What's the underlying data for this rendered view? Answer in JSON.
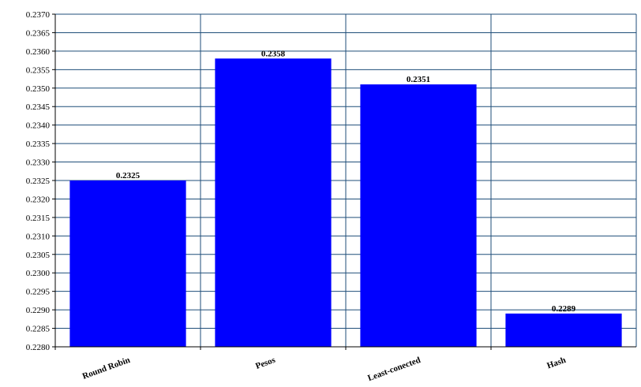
{
  "chart_data": {
    "type": "bar",
    "categories": [
      "Round Robin",
      "Pesos",
      "Least-conected",
      "Hash"
    ],
    "values": [
      0.2325,
      0.2358,
      0.2351,
      0.2289
    ],
    "data_labels": [
      "0.2325",
      "0.2358",
      "0.2351",
      "0.2289"
    ],
    "title": "",
    "xlabel": "",
    "ylabel": "",
    "ylim": [
      0.228,
      0.237
    ],
    "yticks": [
      "0.2280",
      "0.2285",
      "0.2290",
      "0.2295",
      "0.2300",
      "0.2305",
      "0.2310",
      "0.2315",
      "0.2320",
      "0.2325",
      "0.2330",
      "0.2335",
      "0.2340",
      "0.2345",
      "0.2350",
      "0.2355",
      "0.2360",
      "0.2365",
      "0.2370"
    ],
    "grid": true,
    "bar_color": "#0000ff",
    "grid_color": "#1f4e79",
    "axis_color": "#000000",
    "legend": "none"
  }
}
